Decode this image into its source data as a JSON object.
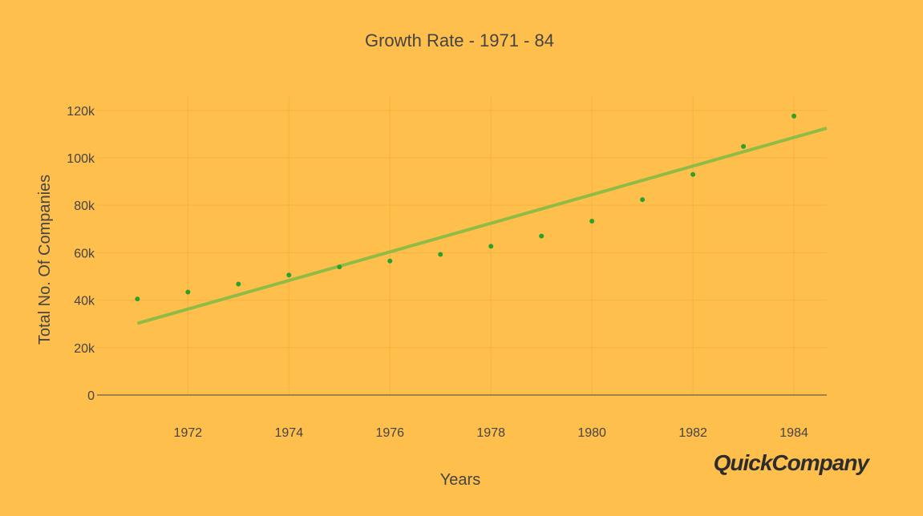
{
  "chart_data": {
    "type": "scatter",
    "title": "Growth Rate - 1971 - 84",
    "xlabel": "Years",
    "ylabel": "Total No. Of Companies",
    "x": [
      1971,
      1972,
      1973,
      1974,
      1975,
      1976,
      1977,
      1978,
      1979,
      1980,
      1981,
      1982,
      1983,
      1984
    ],
    "series": [
      {
        "type": "scatter",
        "values": [
          40500,
          43400,
          46800,
          50600,
          54000,
          56500,
          59300,
          62700,
          67000,
          73300,
          82400,
          93000,
          104800,
          117600
        ]
      },
      {
        "type": "line",
        "x": [
          1971,
          1984.65
        ],
        "values": [
          30200,
          112500
        ]
      }
    ],
    "xlim": [
      1970.2,
      1984.65
    ],
    "ylim": [
      0,
      126000
    ],
    "xticks": [
      1972,
      1974,
      1976,
      1978,
      1980,
      1982,
      1984
    ],
    "yticks": [
      {
        "value": 0,
        "label": "0"
      },
      {
        "value": 20000,
        "label": "20k"
      },
      {
        "value": 40000,
        "label": "40k"
      },
      {
        "value": 60000,
        "label": "60k"
      },
      {
        "value": 80000,
        "label": "80k"
      },
      {
        "value": 100000,
        "label": "100k"
      },
      {
        "value": 120000,
        "label": "120k"
      }
    ],
    "grid": true,
    "colors": {
      "background": "#ffbf4d",
      "grid": "#f5b340",
      "marker": "#2ca02c",
      "trendline": "#8fbc45",
      "axis": "#444444"
    }
  },
  "branding": {
    "logo_text": "QuickCompany"
  }
}
